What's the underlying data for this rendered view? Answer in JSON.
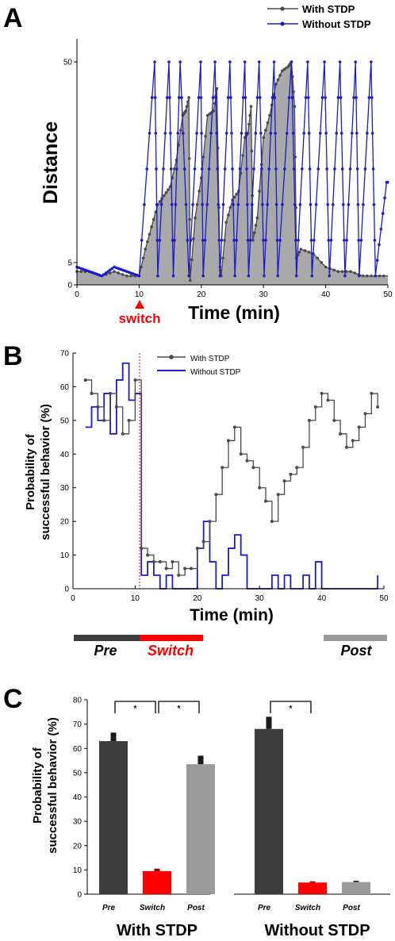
{
  "colors": {
    "with_stdp": "#4a4a4a",
    "without_stdp": "#1a1ad0",
    "area_fill": "#a9a9a9",
    "switch_red": "#ff0000",
    "pre_bar": "#3d3d3d",
    "post_bar": "#9a9a9a"
  },
  "panels": {
    "a": "A",
    "b": "B",
    "c": "C"
  },
  "chart_data": [
    {
      "id": "A",
      "type": "line",
      "xlabel": "Time (min)",
      "ylabel": "Distance",
      "xlim": [
        0,
        50
      ],
      "ylim": [
        0,
        52
      ],
      "xticks": [
        0,
        10,
        20,
        30,
        40,
        50
      ],
      "yticks": [
        0,
        5,
        50
      ],
      "marker_label": "switch",
      "marker_x": 10,
      "grid": false,
      "legend": "top-right",
      "series": [
        {
          "name": "With STDP",
          "style": "line+markers, filled area",
          "x": [
            0,
            2,
            4,
            6,
            8,
            10,
            11,
            12,
            13,
            14,
            15,
            16,
            17,
            17.5,
            18,
            18.2,
            19,
            20,
            21,
            22,
            22.5,
            23,
            23.2,
            24,
            25,
            26,
            27,
            27.5,
            28,
            28.3,
            29,
            30,
            31,
            32,
            33,
            34,
            34.5,
            35,
            35.3,
            36,
            38,
            40,
            42,
            44,
            46,
            48,
            50
          ],
          "y": [
            3,
            3,
            2,
            3,
            2,
            2,
            8,
            13,
            18,
            20,
            22,
            28,
            38,
            39,
            42,
            1,
            15,
            24,
            38,
            39,
            44,
            4,
            2,
            14,
            19,
            21,
            33,
            34,
            40,
            10,
            15,
            33,
            38,
            45,
            48,
            49,
            50,
            40,
            6,
            8,
            7,
            4,
            3,
            3,
            2,
            2,
            2
          ]
        },
        {
          "name": "Without STDP",
          "style": "line+markers",
          "x": [
            0,
            2,
            4,
            6,
            8,
            10,
            12.5,
            13,
            14.8,
            15.5,
            16.6,
            18,
            19.9,
            20.3,
            22.2,
            23,
            24.6,
            25.4,
            27,
            27.6,
            29.3,
            30.1,
            31.7,
            32.3,
            34.5,
            35.3,
            37.1,
            37.8,
            39.8,
            40.6,
            42.3,
            43.1,
            44.8,
            45.4,
            47.3,
            48,
            49.8,
            50
          ],
          "y": [
            4,
            3,
            2,
            4,
            3,
            2,
            50,
            2,
            50,
            2,
            50,
            2,
            50,
            2,
            50,
            2,
            50,
            2,
            50,
            2,
            50,
            2,
            50,
            2,
            50,
            2,
            50,
            2,
            50,
            2,
            50,
            2,
            50,
            2,
            50,
            2,
            23,
            23
          ]
        }
      ]
    },
    {
      "id": "B",
      "type": "line",
      "xlabel": "Time (min)",
      "ylabel_line1": "Probability of",
      "ylabel_line2": "successful behavior (%)",
      "xlim": [
        0,
        50
      ],
      "ylim": [
        0,
        70
      ],
      "xticks": [
        0,
        10,
        20,
        30,
        40,
        50
      ],
      "yticks": [
        0,
        10,
        20,
        30,
        40,
        50,
        60,
        70
      ],
      "marker_x": 10,
      "legend": "top-center",
      "series": [
        {
          "name": "With STDP",
          "style": "step line + markers",
          "x": [
            2,
            3,
            4,
            5,
            6,
            7,
            8,
            9,
            10,
            11,
            12,
            13,
            14,
            15,
            16,
            17,
            18,
            19,
            20,
            21,
            22,
            23,
            24,
            25,
            26,
            27,
            28,
            29,
            30,
            31,
            32,
            33,
            34,
            35,
            36,
            37,
            38,
            39,
            40,
            41,
            42,
            43,
            44,
            45,
            46,
            47,
            48,
            49
          ],
          "y": [
            62,
            58,
            54,
            50,
            58,
            54,
            46,
            50,
            62,
            12,
            10,
            8,
            8,
            6,
            8,
            4,
            6,
            6,
            12,
            14,
            20,
            28,
            36,
            44,
            48,
            40,
            38,
            36,
            30,
            26,
            20,
            28,
            32,
            34,
            36,
            42,
            50,
            54,
            58,
            56,
            50,
            46,
            42,
            44,
            48,
            52,
            58,
            54
          ]
        },
        {
          "name": "Without STDP",
          "style": "step line",
          "x": [
            2,
            3,
            4,
            5,
            6,
            7,
            8,
            9,
            10,
            11,
            12,
            13,
            14,
            15,
            16,
            17,
            18,
            19,
            20,
            21,
            22,
            23,
            24,
            25,
            26,
            27,
            28,
            29,
            30,
            31,
            32,
            33,
            34,
            35,
            36,
            37,
            38,
            39,
            40,
            41,
            42,
            43,
            44,
            45,
            46,
            47,
            48,
            49
          ],
          "y": [
            48,
            54,
            50,
            58,
            46,
            62,
            67,
            56,
            58,
            4,
            8,
            4,
            0,
            4,
            0,
            0,
            0,
            0,
            12,
            20,
            8,
            0,
            4,
            12,
            16,
            10,
            0,
            0,
            0,
            0,
            4,
            0,
            4,
            0,
            0,
            4,
            0,
            8,
            0,
            0,
            0,
            0,
            0,
            0,
            0,
            0,
            0,
            4
          ]
        }
      ]
    },
    {
      "id": "C",
      "type": "bar",
      "ylabel_line1": "Probability of",
      "ylabel_line2": "successful behavior (%)",
      "ylim": [
        0,
        80
      ],
      "yticks": [
        0,
        10,
        20,
        30,
        40,
        50,
        60,
        70,
        80
      ],
      "groups": [
        {
          "name": "With STDP",
          "categories": [
            "Pre",
            "Switch",
            "Post"
          ],
          "values": [
            63,
            9.5,
            53.5
          ],
          "errors": [
            3.5,
            1,
            3.5
          ],
          "significance": [
            [
              "Pre",
              "Switch"
            ],
            [
              "Switch",
              "Post"
            ]
          ]
        },
        {
          "name": "Without STDP",
          "categories": [
            "Pre",
            "Switch",
            "Post"
          ],
          "values": [
            68,
            4.8,
            5.0
          ],
          "errors": [
            5,
            0.5,
            0.5
          ],
          "significance": [
            [
              "Pre",
              "Switch"
            ]
          ]
        }
      ],
      "significance_symbol": "*"
    }
  ],
  "phase_bar": {
    "labels": [
      "Pre",
      "Switch",
      "Post"
    ]
  }
}
